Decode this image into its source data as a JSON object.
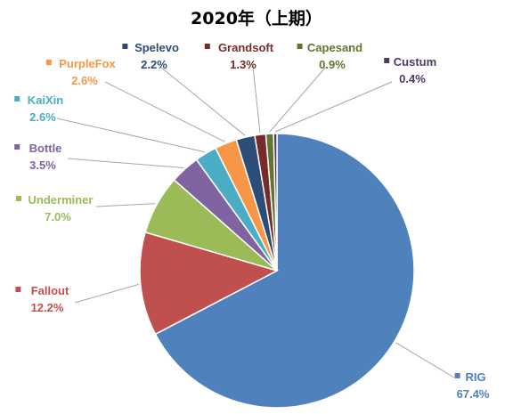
{
  "chart_data": {
    "type": "pie",
    "title": "2020年（上期）",
    "start_angle_deg": 0,
    "direction": "clockwise",
    "slices": [
      {
        "label": "RIG",
        "value": 67.4,
        "pct_text": "67.4%",
        "color": "#4f81bd"
      },
      {
        "label": "Fallout",
        "value": 12.2,
        "pct_text": "12.2%",
        "color": "#c0504d"
      },
      {
        "label": "Underminer",
        "value": 7.0,
        "pct_text": "7.0%",
        "color": "#9bbb59"
      },
      {
        "label": "Bottle",
        "value": 3.5,
        "pct_text": "3.5%",
        "color": "#8064a2"
      },
      {
        "label": "KaiXin",
        "value": 2.6,
        "pct_text": "2.6%",
        "color": "#4bacc6"
      },
      {
        "label": "PurpleFox",
        "value": 2.6,
        "pct_text": "2.6%",
        "color": "#f79646"
      },
      {
        "label": "Spelevo",
        "value": 2.2,
        "pct_text": "2.2%",
        "color": "#2c4d75"
      },
      {
        "label": "Grandsoft",
        "value": 1.3,
        "pct_text": "1.3%",
        "color": "#772c2a"
      },
      {
        "label": "Capesand",
        "value": 0.9,
        "pct_text": "0.9%",
        "color": "#5f7530"
      },
      {
        "label": "Custum",
        "value": 0.4,
        "pct_text": "0.4%",
        "color": "#4d3b62"
      }
    ]
  }
}
